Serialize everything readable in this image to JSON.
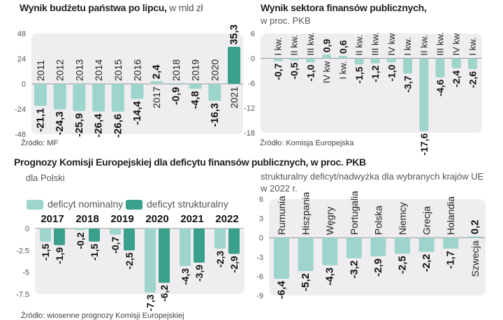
{
  "colors": {
    "light": "#9dd5cd",
    "dark": "#3a9f8c",
    "plot_bg": "#efedef",
    "zero_line": "#999999"
  },
  "chart_data": [
    {
      "type": "bar",
      "title": "Wynik budżetu państwa po lipcu,",
      "unit": "w mld zł",
      "source": "Źródło: MF",
      "ylim": [
        -48,
        48
      ],
      "yticks": [
        "48",
        "24",
        "0",
        "-24",
        "-48"
      ],
      "categories": [
        "2011",
        "2012",
        "2013",
        "2014",
        "2015",
        "2016",
        "2017",
        "2018",
        "2019",
        "2020",
        "2021"
      ],
      "values": [
        -21.1,
        -24.3,
        -25.9,
        -26.4,
        -26.6,
        -14.4,
        2.4,
        -0.9,
        -4.8,
        -16.3,
        35.3
      ],
      "labels": [
        "-21,1",
        "-24,3",
        "-25,9",
        "-26,4",
        "-26,6",
        "-14,4",
        "2,4",
        "-0,9",
        "-4,8",
        "-16,3",
        "35,3"
      ],
      "highlight_index": 10
    },
    {
      "type": "bar",
      "title": "Wynik sektora finansów publicznych,",
      "unit": "w proc. PKB",
      "source": "Źródło: Komisja Europejska",
      "ylim": [
        -18,
        6
      ],
      "yticks": [
        "6",
        "0",
        "-6",
        "-12",
        "-18"
      ],
      "categories": [
        "I kw.",
        "II kw.",
        "III kw.",
        "IV kw",
        "I kw.",
        "II kw.",
        "III kw.",
        "IV kw",
        "I kw.",
        "II kw.",
        "III kw.",
        "IV kw",
        "I kw."
      ],
      "values": [
        -0.7,
        -0.5,
        -1.0,
        0.9,
        0.6,
        -1.5,
        -1.2,
        -1.0,
        -3.7,
        -17.6,
        -4.6,
        -2.4,
        -2.6
      ],
      "labels": [
        "-0,7",
        "-0,5",
        "-1,0",
        "0,9",
        "0,6",
        "-1,5",
        "-1,2",
        "-1,0",
        "-3,7",
        "-17,6",
        "-4,6",
        "-2,4",
        "-2,6"
      ]
    },
    {
      "type": "bar",
      "title": "Prognozy Komisji Europejskiej dla deficytu finansów publicznych, w proc. PKB",
      "subtitle": "dla Polski",
      "source": "Źródło: wiosenne prognozy Komisji Europejskiej",
      "ylim": [
        -7.5,
        0
      ],
      "yticks": [
        "0",
        "-2.5",
        "-5",
        "-7.5"
      ],
      "categories": [
        "2017",
        "2018",
        "2019",
        "2020",
        "2021",
        "2022"
      ],
      "series": [
        {
          "name": "deficyt nominalny",
          "values": [
            -1.5,
            -0.2,
            -0.7,
            -7.3,
            -4.3,
            -2.3
          ],
          "labels": [
            "-1,5",
            "-0,2",
            "-0,7",
            "-7,3",
            "-4,3",
            "-2,3"
          ]
        },
        {
          "name": "deficyt strukturalny",
          "values": [
            -1.9,
            -1.5,
            -2.5,
            -6.2,
            -3.9,
            -2.9
          ],
          "labels": [
            "-1,9",
            "-1,5",
            "-2,5",
            "-6,2",
            "-3,9",
            "-2,9"
          ]
        }
      ],
      "legend": "top"
    },
    {
      "type": "bar",
      "subtitle": "strukturalny deficyt/nadwyżka dla wybranych krajów UE w 2022 r.",
      "ylim": [
        -9,
        6
      ],
      "yticks": [
        "6",
        "3",
        "0",
        "-3",
        "-6",
        "-9"
      ],
      "categories": [
        "Rumunia",
        "Hiszpania",
        "Węgry",
        "Portugalia",
        "Polska",
        "Niemcy",
        "Grecja",
        "Holandia",
        "Szwecja"
      ],
      "values": [
        -6.4,
        -5.2,
        -4.3,
        -3.2,
        -2.9,
        -2.5,
        -2.2,
        -1.7,
        0.2
      ],
      "labels": [
        "-6,4",
        "-5,2",
        "-4,3",
        "-3,2",
        "-2,9",
        "-2,5",
        "-2,2",
        "-1,7",
        "0,2"
      ]
    }
  ]
}
